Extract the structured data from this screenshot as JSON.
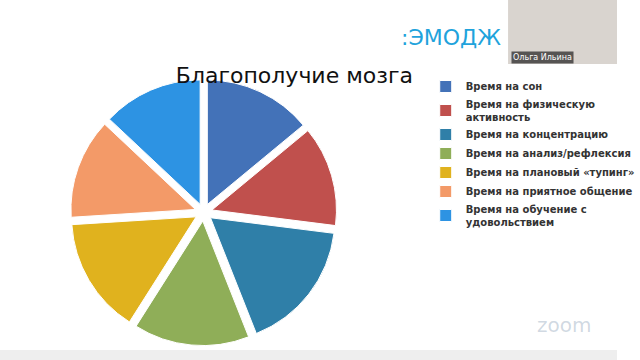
{
  "chart_data": {
    "type": "pie",
    "title": "Благополучие мозга",
    "categories": [
      "Время на сон",
      "Время на физическую активность",
      "Время на концентрацию",
      "Время на анализ/рефлексия",
      "Время на плановый «тупинг»",
      "Время на приятное общение",
      "Время на обучение с удовольствием"
    ],
    "values": [
      14,
      13,
      17,
      15,
      15,
      13,
      13
    ],
    "colors": [
      "#4372b8",
      "#c0504d",
      "#2f7fa8",
      "#8fae58",
      "#e0b21e",
      "#f39a68",
      "#2d93e3"
    ],
    "legend": "right",
    "annotations": [
      ":ЭМОДЖ",
      "Ольга Ильина",
      "zoom"
    ]
  }
}
